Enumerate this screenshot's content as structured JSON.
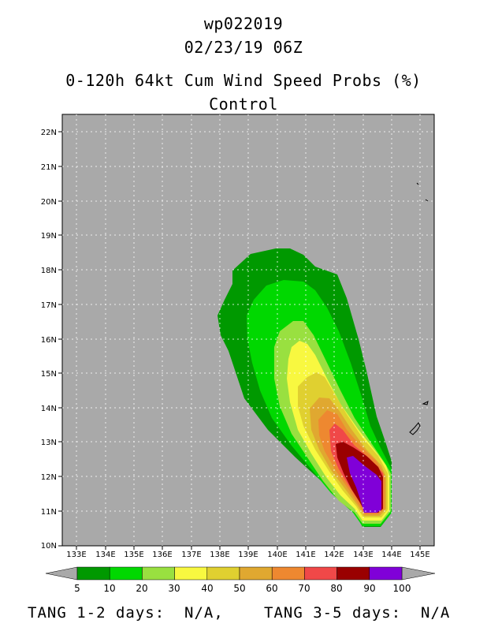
{
  "header": {
    "storm_id": "wp022019",
    "datetime": "02/23/19 06Z",
    "product": "0-120h 64kt Cum Wind Speed Probs (%)",
    "member": "Control"
  },
  "map": {
    "lon_labels": [
      "133E",
      "134E",
      "135E",
      "136E",
      "137E",
      "138E",
      "139E",
      "140E",
      "141E",
      "142E",
      "143E",
      "144E",
      "145E"
    ],
    "lat_labels": [
      "10N",
      "11N",
      "12N",
      "13N",
      "14N",
      "15N",
      "16N",
      "17N",
      "18N",
      "19N",
      "20N",
      "21N",
      "22N"
    ],
    "lon_range": [
      132.5,
      145.5
    ],
    "lat_range": [
      10,
      22.3
    ],
    "background_color": "#a9a9a9",
    "probability_levels": [
      5,
      10,
      20,
      30,
      40,
      50,
      60,
      70,
      80,
      90,
      100
    ]
  },
  "legend": {
    "labels": [
      "5",
      "10",
      "20",
      "30",
      "40",
      "50",
      "60",
      "70",
      "80",
      "90",
      "100"
    ],
    "colors": [
      "#009900",
      "#00d800",
      "#99e040",
      "#f8f840",
      "#e0d030",
      "#e0a830",
      "#ee8830",
      "#f04848",
      "#9a0000",
      "#8000d8"
    ]
  },
  "footer": {
    "left": "TANG 1-2 days:  N/A,",
    "right": "TANG 3-5 days:  N/A"
  }
}
